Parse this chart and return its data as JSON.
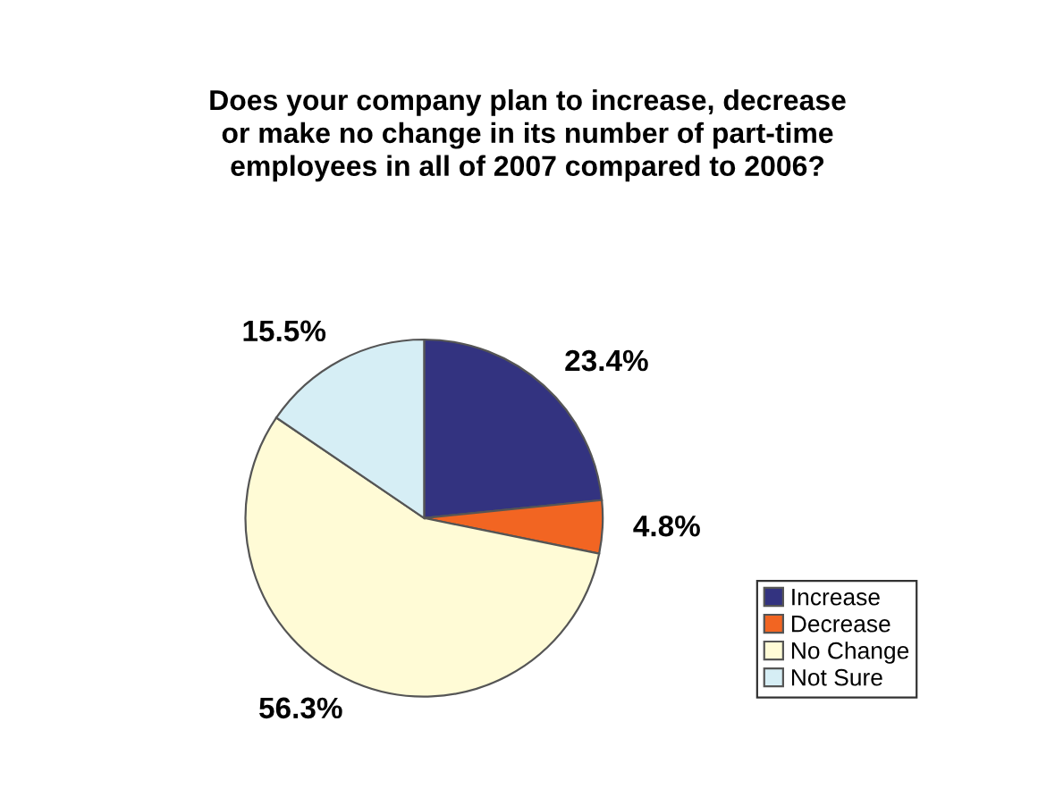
{
  "chart_data": {
    "type": "pie",
    "title": "Does your company plan to increase, decrease\nor make no change in its number of part-time\nemployees in all of 2007 compared to 2006?",
    "categories": [
      "Increase",
      "Decrease",
      "No Change",
      "Not Sure"
    ],
    "values": [
      23.4,
      4.8,
      56.3,
      15.5
    ],
    "value_labels": [
      "23.4%",
      "4.8%",
      "56.3%",
      "15.5%"
    ],
    "colors": [
      "#333380",
      "#f26522",
      "#fffbd6",
      "#d6eef5"
    ],
    "legend": "bottom right"
  }
}
